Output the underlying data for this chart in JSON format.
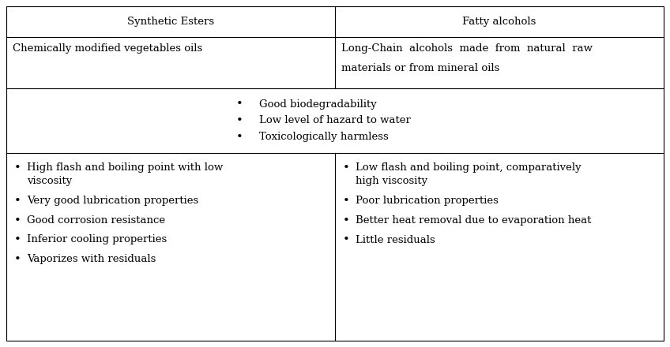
{
  "col_headers": [
    "Synthetic Esters",
    "Fatty alcohols"
  ],
  "row2_left": "Chemically modified vegetables oils",
  "row2_right_line1": "Long-Chain  alcohols  made  from  natural  raw",
  "row2_right_line2": "materials or from mineral oils",
  "row3_bullets": [
    "Good biodegradability",
    "Low level of hazard to water",
    "Toxicologically harmless"
  ],
  "row4_left_bullets": [
    "High flash and boiling point with low\nviscosity",
    "Very good lubrication properties",
    "Good corrosion resistance",
    "Inferior cooling properties",
    "Vaporizes with residuals"
  ],
  "row4_right_bullets": [
    "Low flash and boiling point, comparatively\nhigh viscosity",
    "Poor lubrication properties",
    "Better heat removal due to evaporation heat",
    "Little residuals"
  ],
  "bg_color": "#ffffff",
  "border_color": "#000000",
  "text_color": "#000000",
  "font_size": 9.5,
  "figwidth": 8.48,
  "figheight": 4.4,
  "dpi": 100
}
